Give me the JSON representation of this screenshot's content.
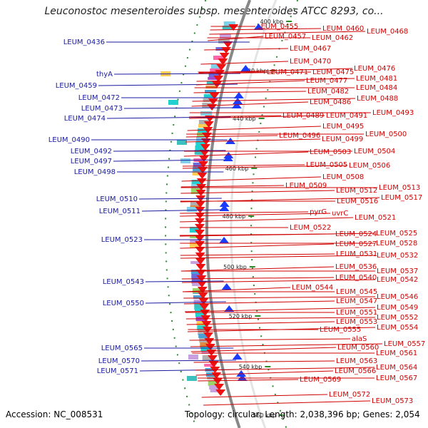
{
  "title": "Leuconostoc mesenteroides subsp. mesenteroides ATCC 8293, co...",
  "footer": {
    "accession": "Accession: NC_008531",
    "summary": "Topology: circular; Length: 2,038,396 bp; Genes: 2,054"
  },
  "colors": {
    "left_label": "#1a1aa0",
    "right_label": "#d00000",
    "forward_arrow": "#1a3cff",
    "reverse_arrow": "#ee1111",
    "tick": "#2d8a2d",
    "backbone": "#888888"
  },
  "kbp_ticks": [
    "400 kbp",
    "420 kbp",
    "440 kbp",
    "460 kbp",
    "480 kbp",
    "500 kbp",
    "520 kbp",
    "540 kbp",
    "560 kbp"
  ],
  "left_genes": [
    "LEUM_0436",
    "thyA",
    "LEUM_0459",
    "LEUM_0472",
    "LEUM_0473",
    "LEUM_0474",
    "LEUM_0490",
    "LEUM_0492",
    "LEUM_0497",
    "LEUM_0498",
    "LEUM_0510",
    "LEUM_0511",
    "LEUM_0523",
    "LEUM_0543",
    "LEUM_0550",
    "LEUM_0565",
    "LEUM_0570",
    "LEUM_0571"
  ],
  "right_genes": [
    "LEUM_0455",
    "LEUM_0460",
    "LEUM_0468",
    "LEUM_0457",
    "LEUM_0462",
    "LEUM_0467",
    "LEUM_0470",
    "LEUM_0476",
    "LEUM_0471",
    "LEUM_0475",
    "LEUM_0481",
    "LEUM_0477",
    "LEUM_0484",
    "LEUM_0482",
    "LEUM_0488",
    "LEUM_0486",
    "LEUM_0493",
    "LEUM_0489",
    "LEUM_0491",
    "LEUM_0495",
    "LEUM_0500",
    "LEUM_0496",
    "LEUM_0499",
    "LEUM_0503",
    "LEUM_0504",
    "LEUM_0505",
    "LEUM_0506",
    "LEUM_0508",
    "LEUM_0513",
    "LEUM_0509",
    "LEUM_0512",
    "LEUM_0517",
    "LEUM_0516",
    "pyrG",
    "uvrC",
    "LEUM_0521",
    "LEUM_0522",
    "LEUM_0524",
    "LEUM_0525",
    "LEUM_0527",
    "LEUM_0528",
    "LEUM_0531",
    "LEUM_0532",
    "LEUM_0536",
    "LEUM_0537",
    "LEUM_0540",
    "LEUM_0542",
    "LEUM_0544",
    "LEUM_0545",
    "LEUM_0546",
    "LEUM_0547",
    "LEUM_0549",
    "LEUM_0551",
    "LEUM_0552",
    "LEUM_0553",
    "LEUM_0554",
    "LEUM_0555",
    "alaS",
    "LEUM_0557",
    "LEUM_0560",
    "LEUM_0561",
    "LEUM_0563",
    "LEUM_0564",
    "LEUM_0566",
    "LEUM_0567",
    "LEUM_0569",
    "LEUM_0572",
    "LEUM_0573"
  ]
}
